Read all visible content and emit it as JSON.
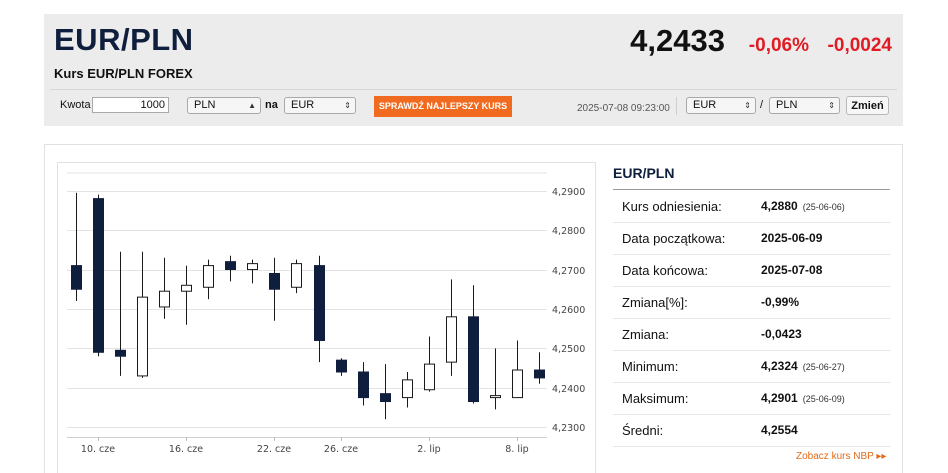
{
  "header": {
    "pair": "EUR/PLN",
    "subtitle": "Kurs EUR/PLN FOREX",
    "rate": "4,2433",
    "change_pct": "-0,06%",
    "change_abs": "-0,0024",
    "colors": {
      "negative": "#e01b24",
      "brand": "#0f1e3c",
      "button": "#f06a1f"
    }
  },
  "converter": {
    "amount_label": "Kwota",
    "amount_value": "1000",
    "from_currency": "PLN",
    "to_label": "na",
    "to_currency": "EUR",
    "cta_label": "SPRAWDŹ NAJLEPSZY KURS",
    "timestamp": "2025-07-08 09:23:00",
    "pair_from": "EUR",
    "pair_separator": "/",
    "pair_to": "PLN",
    "change_button": "Zmień"
  },
  "chart_data": {
    "type": "candlestick",
    "y_ticks": [
      "4,2900",
      "4,2800",
      "4,2700",
      "4,2600",
      "4,2500",
      "4,2400",
      "4,2300"
    ],
    "ylim": [
      4.2275,
      4.2945
    ],
    "x_ticks": [
      "10. cze",
      "16. cze",
      "22. cze",
      "26. cze",
      "2. lip",
      "8. lip"
    ],
    "grid": true,
    "candles": [
      {
        "o": 4.271,
        "h": 4.2895,
        "l": 4.262,
        "c": 4.265
      },
      {
        "o": 4.288,
        "h": 4.289,
        "l": 4.248,
        "c": 4.249
      },
      {
        "o": 4.2495,
        "h": 4.2745,
        "l": 4.243,
        "c": 4.248
      },
      {
        "o": 4.243,
        "h": 4.2745,
        "l": 4.2425,
        "c": 4.263
      },
      {
        "o": 4.2605,
        "h": 4.273,
        "l": 4.2575,
        "c": 4.2645
      },
      {
        "o": 4.2645,
        "h": 4.271,
        "l": 4.256,
        "c": 4.266
      },
      {
        "o": 4.2655,
        "h": 4.2725,
        "l": 4.2625,
        "c": 4.271
      },
      {
        "o": 4.272,
        "h": 4.2735,
        "l": 4.267,
        "c": 4.27
      },
      {
        "o": 4.27,
        "h": 4.2725,
        "l": 4.2665,
        "c": 4.2715
      },
      {
        "o": 4.269,
        "h": 4.273,
        "l": 4.257,
        "c": 4.265
      },
      {
        "o": 4.2655,
        "h": 4.2725,
        "l": 4.264,
        "c": 4.2715
      },
      {
        "o": 4.271,
        "h": 4.2735,
        "l": 4.2465,
        "c": 4.252
      },
      {
        "o": 4.247,
        "h": 4.2475,
        "l": 4.243,
        "c": 4.244
      },
      {
        "o": 4.244,
        "h": 4.2465,
        "l": 4.2355,
        "c": 4.2375
      },
      {
        "o": 4.2385,
        "h": 4.246,
        "l": 4.232,
        "c": 4.2365
      },
      {
        "o": 4.2375,
        "h": 4.244,
        "l": 4.235,
        "c": 4.242
      },
      {
        "o": 4.2395,
        "h": 4.253,
        "l": 4.239,
        "c": 4.246
      },
      {
        "o": 4.2465,
        "h": 4.2675,
        "l": 4.243,
        "c": 4.258
      },
      {
        "o": 4.258,
        "h": 4.266,
        "l": 4.236,
        "c": 4.2365
      },
      {
        "o": 4.2375,
        "h": 4.25,
        "l": 4.2345,
        "c": 4.238
      },
      {
        "o": 4.2375,
        "h": 4.252,
        "l": 4.2375,
        "c": 4.2445
      },
      {
        "o": 4.2445,
        "h": 4.249,
        "l": 4.241,
        "c": 4.2425
      }
    ],
    "colors": {
      "down": "#0f1e3c",
      "up": "#ffffff",
      "outline": "#1a1a1a",
      "grid": "#e3e3e3"
    }
  },
  "panel": {
    "title": "EUR/PLN",
    "rows": [
      {
        "label": "Kurs odniesienia:",
        "value": "4,2880",
        "date": "(25-06-06)"
      },
      {
        "label": "Data początkowa:",
        "value": "2025-06-09",
        "date": ""
      },
      {
        "label": "Data końcowa:",
        "value": "2025-07-08",
        "date": ""
      },
      {
        "label": "Zmiana[%]:",
        "value": "-0,99%",
        "date": ""
      },
      {
        "label": "Zmiana:",
        "value": "-0,0423",
        "date": ""
      },
      {
        "label": "Minimum:",
        "value": "4,2324",
        "date": "(25-06-27)"
      },
      {
        "label": "Maksimum:",
        "value": "4,2901",
        "date": "(25-06-09)"
      },
      {
        "label": "Średni:",
        "value": "4,2554",
        "date": ""
      }
    ],
    "nbp_link": "Zobacz kurs NBP ▸▸"
  }
}
